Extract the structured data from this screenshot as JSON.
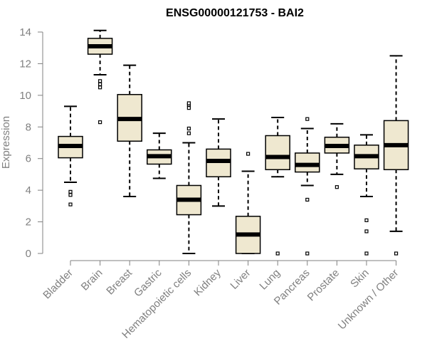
{
  "chart_data": {
    "type": "boxplot",
    "title": "ENSG00000121753 - BAI2",
    "xlabel": "",
    "ylabel": "Expression",
    "ylim": [
      0,
      14
    ],
    "yticks": [
      0,
      2,
      4,
      6,
      8,
      10,
      12,
      14
    ],
    "grid": false,
    "box_fill": "#efe8d0",
    "categories": [
      "Bladder",
      "Brain",
      "Breast",
      "Gastric",
      "Hematopoietic cells",
      "Kidney",
      "Liver",
      "Lung",
      "Pancreas",
      "Prostate",
      "Skin",
      "Unknown / Other"
    ],
    "boxes": [
      {
        "whisker_low": 4.5,
        "q1": 6.05,
        "median": 6.8,
        "q3": 7.4,
        "whisker_high": 9.3,
        "outliers": [
          3.1,
          3.7,
          3.9
        ]
      },
      {
        "whisker_low": 11.3,
        "q1": 12.6,
        "median": 13.1,
        "q3": 13.6,
        "whisker_high": 14.1,
        "outliers": [
          8.3,
          10.5,
          10.7,
          10.9
        ]
      },
      {
        "whisker_low": 3.6,
        "q1": 7.1,
        "median": 8.5,
        "q3": 10.05,
        "whisker_high": 11.9,
        "outliers": []
      },
      {
        "whisker_low": 4.75,
        "q1": 5.65,
        "median": 6.15,
        "q3": 6.55,
        "whisker_high": 7.6,
        "outliers": []
      },
      {
        "whisker_low": 0.0,
        "q1": 2.45,
        "median": 3.4,
        "q3": 4.3,
        "whisker_high": 7.0,
        "outliers": [
          7.6,
          7.9,
          9.2,
          9.4,
          9.5
        ]
      },
      {
        "whisker_low": 3.0,
        "q1": 4.85,
        "median": 5.85,
        "q3": 6.6,
        "whisker_high": 8.5,
        "outliers": []
      },
      {
        "whisker_low": 0.0,
        "q1": 0.0,
        "median": 1.2,
        "q3": 2.35,
        "whisker_high": 5.2,
        "outliers": [
          6.3
        ]
      },
      {
        "whisker_low": 4.85,
        "q1": 5.3,
        "median": 6.1,
        "q3": 7.45,
        "whisker_high": 8.6,
        "outliers": [
          0.0
        ]
      },
      {
        "whisker_low": 4.3,
        "q1": 5.15,
        "median": 5.6,
        "q3": 6.35,
        "whisker_high": 7.9,
        "outliers": [
          0.0,
          3.4,
          8.5
        ]
      },
      {
        "whisker_low": 5.0,
        "q1": 6.35,
        "median": 6.8,
        "q3": 7.35,
        "whisker_high": 8.2,
        "outliers": [
          4.2
        ]
      },
      {
        "whisker_low": 3.6,
        "q1": 5.35,
        "median": 6.15,
        "q3": 6.85,
        "whisker_high": 7.5,
        "outliers": [
          0.0,
          1.4,
          2.1
        ]
      },
      {
        "whisker_low": 1.4,
        "q1": 5.3,
        "median": 6.85,
        "q3": 8.4,
        "whisker_high": 12.5,
        "outliers": [
          0.0
        ]
      }
    ]
  }
}
